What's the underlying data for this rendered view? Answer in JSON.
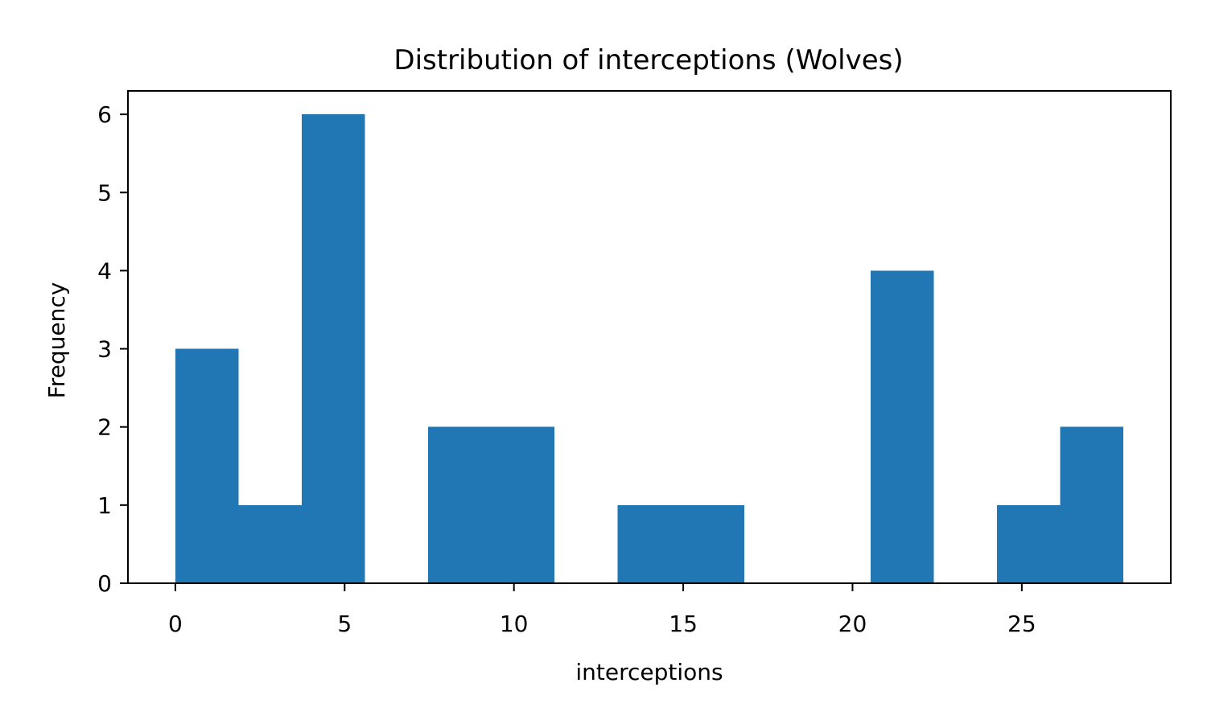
{
  "chart_data": {
    "type": "bar",
    "title": "Distribution of interceptions (Wolves)",
    "xlabel": "interceptions",
    "ylabel": "Frequency",
    "bins": [
      {
        "x0": 0.0,
        "x1": 1.867,
        "count": 3
      },
      {
        "x0": 1.867,
        "x1": 3.733,
        "count": 1
      },
      {
        "x0": 3.733,
        "x1": 5.6,
        "count": 6
      },
      {
        "x0": 5.6,
        "x1": 7.467,
        "count": 0
      },
      {
        "x0": 7.467,
        "x1": 9.333,
        "count": 2
      },
      {
        "x0": 9.333,
        "x1": 11.2,
        "count": 2
      },
      {
        "x0": 11.2,
        "x1": 13.067,
        "count": 0
      },
      {
        "x0": 13.067,
        "x1": 14.933,
        "count": 1
      },
      {
        "x0": 14.933,
        "x1": 16.8,
        "count": 1
      },
      {
        "x0": 16.8,
        "x1": 18.667,
        "count": 0
      },
      {
        "x0": 18.667,
        "x1": 20.533,
        "count": 0
      },
      {
        "x0": 20.533,
        "x1": 22.4,
        "count": 4
      },
      {
        "x0": 22.4,
        "x1": 24.267,
        "count": 0
      },
      {
        "x0": 24.267,
        "x1": 26.133,
        "count": 1
      },
      {
        "x0": 26.133,
        "x1": 28.0,
        "count": 2
      }
    ],
    "xlim": [
      -1.4,
      29.4
    ],
    "ylim": [
      0,
      6.3
    ],
    "xticks": [
      0,
      5,
      10,
      15,
      20,
      25
    ],
    "yticks": [
      0,
      1,
      2,
      3,
      4,
      5,
      6
    ],
    "bar_color": "#2077b4",
    "grid": false
  }
}
